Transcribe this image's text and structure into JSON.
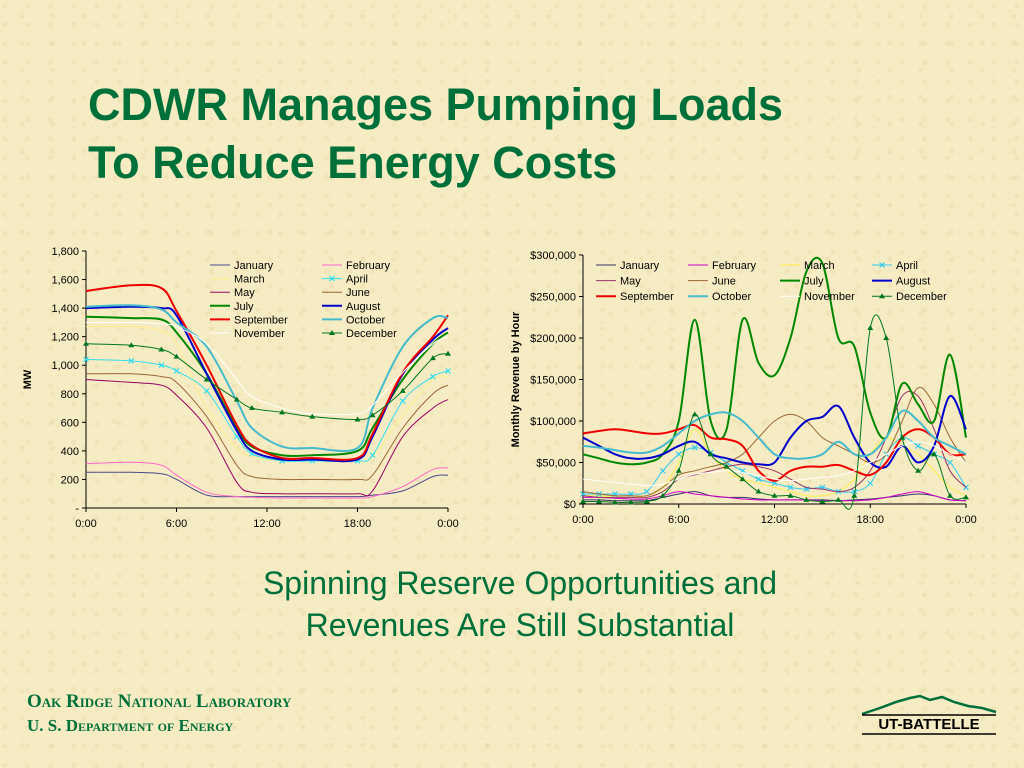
{
  "slide": {
    "title_line1": "CDWR Manages Pumping Loads",
    "title_line2": "To Reduce Energy Costs",
    "subtitle_line1": "Spinning Reserve Opportunities and",
    "subtitle_line2": "Revenues Are Still Substantial",
    "footer_line1": "Oak Ridge National Laboratory",
    "footer_line2": "U. S. Department of Energy",
    "logo_text": "UT-BATTELLE",
    "title_color": "#00703a"
  },
  "chart_data": [
    {
      "type": "line",
      "ylabel": "MW",
      "xlabel": "",
      "x_ticks": [
        "0:00",
        "6:00",
        "12:00",
        "18:00",
        "0:00"
      ],
      "x_range": [
        0,
        24
      ],
      "y_ticks": [
        "-",
        "200",
        "400",
        "600",
        "800",
        "1,000",
        "1,200",
        "1,400",
        "1,600",
        "1,800"
      ],
      "ylim": [
        0,
        1800
      ],
      "legend_position": "top-right",
      "grid": false,
      "hours": [
        0,
        3,
        5,
        6,
        8,
        10,
        11,
        13,
        15,
        18,
        19,
        21,
        23,
        24
      ],
      "series": [
        {
          "name": "January",
          "color": "#4a4a8c",
          "marker": "none",
          "width": 1,
          "values": [
            250,
            250,
            240,
            200,
            90,
            80,
            80,
            80,
            80,
            80,
            90,
            120,
            220,
            230
          ]
        },
        {
          "name": "February",
          "color": "#ff66cc",
          "marker": "none",
          "width": 1,
          "values": [
            310,
            320,
            300,
            230,
            110,
            80,
            75,
            70,
            70,
            70,
            80,
            150,
            270,
            280
          ]
        },
        {
          "name": "March",
          "color": "#ffee88",
          "marker": "none",
          "width": 1,
          "values": [
            1270,
            1270,
            1240,
            1150,
            700,
            420,
            360,
            330,
            330,
            330,
            360,
            650,
            900,
            920
          ]
        },
        {
          "name": "April",
          "color": "#33ddee",
          "marker": "x",
          "width": 1,
          "values": [
            1040,
            1030,
            1000,
            960,
            820,
            500,
            380,
            330,
            330,
            330,
            370,
            750,
            920,
            960
          ]
        },
        {
          "name": "May",
          "color": "#990066",
          "marker": "none",
          "width": 1,
          "values": [
            900,
            880,
            860,
            790,
            560,
            180,
            110,
            100,
            100,
            100,
            120,
            500,
            700,
            760
          ]
        },
        {
          "name": "June",
          "color": "#996633",
          "marker": "none",
          "width": 1,
          "values": [
            940,
            940,
            920,
            880,
            640,
            300,
            220,
            200,
            200,
            200,
            230,
            560,
            800,
            860
          ]
        },
        {
          "name": "July",
          "color": "#008800",
          "marker": "none",
          "width": 2,
          "values": [
            1340,
            1330,
            1320,
            1230,
            940,
            560,
            430,
            370,
            370,
            400,
            560,
            900,
            1150,
            1230
          ]
        },
        {
          "name": "August",
          "color": "#0000cc",
          "marker": "none",
          "width": 2,
          "values": [
            1400,
            1410,
            1400,
            1350,
            940,
            540,
            400,
            340,
            340,
            340,
            500,
            940,
            1180,
            1260
          ]
        },
        {
          "name": "September",
          "color": "#ee0000",
          "marker": "none",
          "width": 2,
          "values": [
            1520,
            1560,
            1540,
            1380,
            1000,
            580,
            440,
            350,
            350,
            350,
            520,
            950,
            1200,
            1350
          ]
        },
        {
          "name": "October",
          "color": "#44bbcc",
          "marker": "none",
          "width": 2,
          "values": [
            1410,
            1420,
            1390,
            1300,
            1130,
            750,
            560,
            430,
            420,
            420,
            700,
            1130,
            1330,
            1330
          ]
        },
        {
          "name": "November",
          "color": "#ffffff",
          "marker": "none",
          "width": 1,
          "values": [
            1300,
            1300,
            1290,
            1270,
            1150,
            900,
            780,
            700,
            660,
            660,
            720,
            950,
            1150,
            1200
          ]
        },
        {
          "name": "December",
          "color": "#00771f",
          "marker": "triangle",
          "width": 1,
          "values": [
            1150,
            1140,
            1110,
            1060,
            900,
            760,
            700,
            670,
            640,
            620,
            650,
            820,
            1050,
            1080
          ]
        }
      ]
    },
    {
      "type": "line",
      "ylabel": "Monthly Revenue by Hour",
      "xlabel": "",
      "x_ticks": [
        "0:00",
        "6:00",
        "12:00",
        "18:00",
        "0:00"
      ],
      "x_range": [
        0,
        24
      ],
      "y_ticks": [
        "$0",
        "$50,000",
        "$100,000",
        "$150,000",
        "$200,000",
        "$250,000",
        "$300,000"
      ],
      "ylim": [
        0,
        300000
      ],
      "legend_position": "top",
      "grid": false,
      "hours": [
        0,
        1,
        2,
        3,
        4,
        5,
        6,
        7,
        8,
        9,
        10,
        11,
        12,
        13,
        14,
        15,
        16,
        17,
        18,
        19,
        20,
        21,
        22,
        23,
        24
      ],
      "series": [
        {
          "name": "January",
          "color": "#333366",
          "marker": "none",
          "width": 1,
          "values": [
            5000,
            5000,
            4000,
            4000,
            4000,
            8000,
            12000,
            15000,
            10000,
            8000,
            8000,
            6000,
            5000,
            5000,
            5000,
            5000,
            4000,
            5000,
            6000,
            8000,
            10000,
            12000,
            10000,
            5000,
            4000
          ]
        },
        {
          "name": "February",
          "color": "#cc00cc",
          "marker": "none",
          "width": 1,
          "values": [
            8000,
            8000,
            7000,
            6000,
            6000,
            10000,
            15000,
            12000,
            10000,
            8000,
            6000,
            5000,
            5000,
            5000,
            5000,
            4000,
            4000,
            4000,
            5000,
            8000,
            12000,
            15000,
            10000,
            5000,
            4000
          ]
        },
        {
          "name": "March",
          "color": "#ffee44",
          "marker": "none",
          "width": 1,
          "values": [
            10000,
            10000,
            8000,
            8000,
            10000,
            20000,
            50000,
            90000,
            60000,
            40000,
            30000,
            25000,
            20000,
            15000,
            10000,
            10000,
            15000,
            30000,
            60000,
            80000,
            70000,
            60000,
            40000,
            20000,
            10000
          ]
        },
        {
          "name": "April",
          "color": "#33ccee",
          "marker": "x",
          "width": 1,
          "values": [
            12000,
            12000,
            12000,
            12000,
            15000,
            40000,
            60000,
            68000,
            62000,
            50000,
            40000,
            30000,
            25000,
            20000,
            18000,
            20000,
            15000,
            15000,
            25000,
            60000,
            80000,
            70000,
            60000,
            50000,
            20000
          ]
        },
        {
          "name": "May",
          "color": "#993366",
          "marker": "none",
          "width": 1,
          "values": [
            10000,
            8000,
            8000,
            8000,
            8000,
            15000,
            30000,
            35000,
            40000,
            45000,
            48000,
            45000,
            40000,
            30000,
            20000,
            18000,
            15000,
            20000,
            40000,
            80000,
            130000,
            130000,
            90000,
            40000,
            20000
          ]
        },
        {
          "name": "June",
          "color": "#996633",
          "marker": "none",
          "width": 1,
          "values": [
            15000,
            12000,
            10000,
            10000,
            10000,
            20000,
            35000,
            40000,
            45000,
            50000,
            60000,
            80000,
            100000,
            108000,
            100000,
            80000,
            70000,
            60000,
            50000,
            60000,
            100000,
            140000,
            120000,
            80000,
            50000
          ]
        },
        {
          "name": "July",
          "color": "#008800",
          "marker": "none",
          "width": 2,
          "values": [
            60000,
            55000,
            50000,
            48000,
            50000,
            60000,
            100000,
            222000,
            100000,
            90000,
            222000,
            170000,
            155000,
            200000,
            280000,
            290000,
            200000,
            190000,
            110000,
            80000,
            145000,
            120000,
            100000,
            180000,
            80000
          ]
        },
        {
          "name": "August",
          "color": "#0000cc",
          "marker": "none",
          "width": 2,
          "values": [
            80000,
            70000,
            60000,
            55000,
            55000,
            60000,
            70000,
            75000,
            60000,
            55000,
            50000,
            48000,
            50000,
            80000,
            100000,
            105000,
            118000,
            80000,
            50000,
            45000,
            70000,
            50000,
            70000,
            130000,
            90000
          ]
        },
        {
          "name": "September",
          "color": "#ee0000",
          "marker": "none",
          "width": 2,
          "values": [
            85000,
            88000,
            90000,
            88000,
            85000,
            85000,
            90000,
            95000,
            80000,
            78000,
            70000,
            40000,
            28000,
            40000,
            45000,
            45000,
            47000,
            40000,
            35000,
            50000,
            80000,
            90000,
            80000,
            60000,
            60000
          ]
        },
        {
          "name": "October",
          "color": "#44bbcc",
          "marker": "none",
          "width": 2,
          "values": [
            70000,
            68000,
            65000,
            62000,
            62000,
            70000,
            85000,
            100000,
            108000,
            110000,
            100000,
            80000,
            60000,
            55000,
            55000,
            60000,
            75000,
            60000,
            60000,
            80000,
            112000,
            100000,
            80000,
            70000,
            60000
          ]
        },
        {
          "name": "November",
          "color": "#ffffff",
          "marker": "none",
          "width": 1,
          "values": [
            30000,
            28000,
            26000,
            24000,
            22000,
            24000,
            30000,
            36000,
            38000,
            40000,
            38000,
            34000,
            30000,
            28000,
            30000,
            32000,
            34000,
            40000,
            50000,
            60000,
            70000,
            75000,
            70000,
            60000,
            50000
          ]
        },
        {
          "name": "December",
          "color": "#00771f",
          "marker": "triangle",
          "width": 1,
          "values": [
            3000,
            3000,
            2000,
            2000,
            3000,
            10000,
            40000,
            108000,
            60000,
            45000,
            30000,
            15000,
            10000,
            10000,
            5000,
            3000,
            5000,
            10000,
            212000,
            200000,
            80000,
            40000,
            60000,
            10000,
            8000
          ]
        }
      ]
    }
  ]
}
